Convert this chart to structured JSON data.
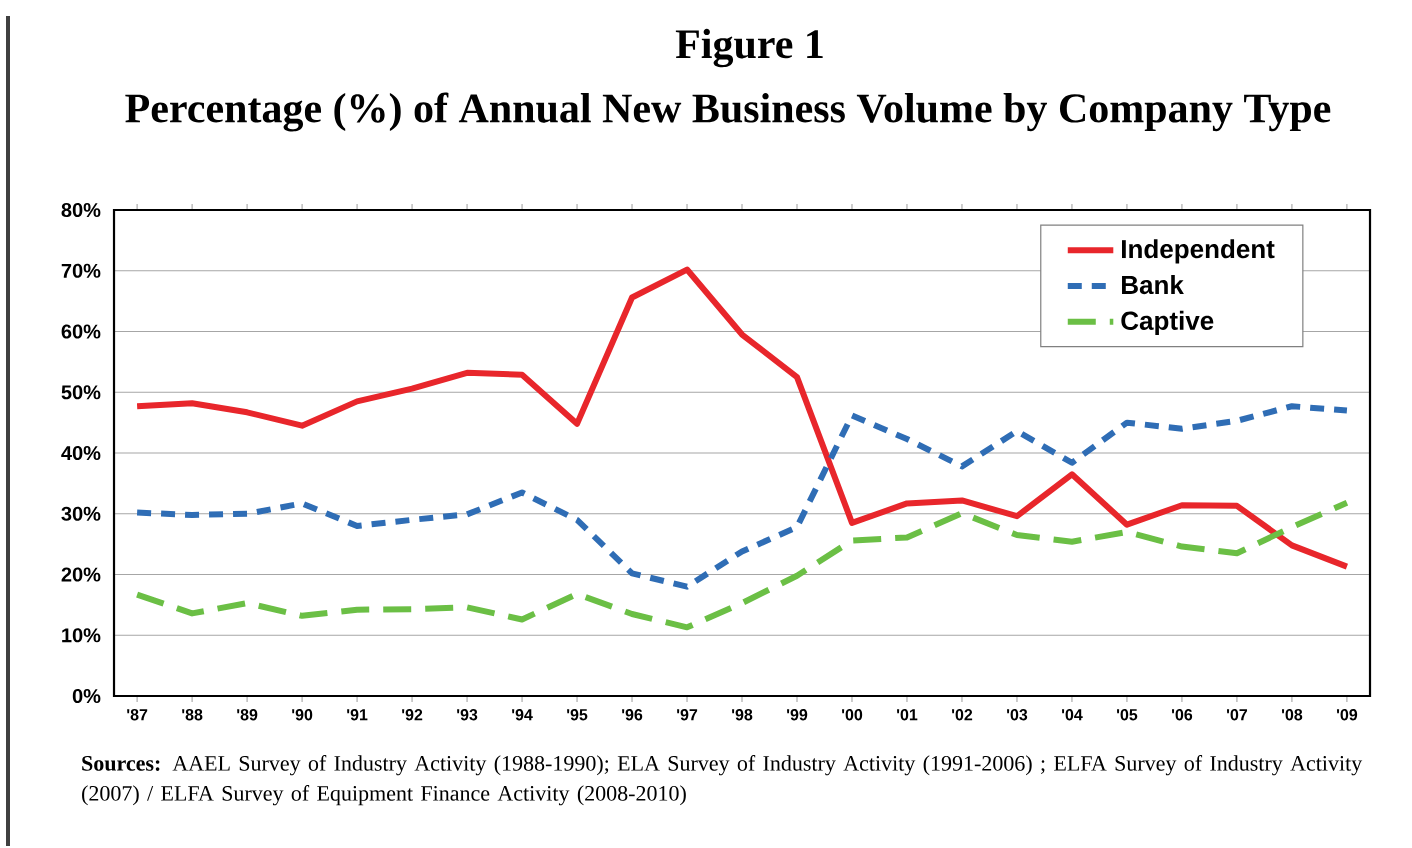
{
  "chart_data": {
    "type": "line",
    "title": "Figure 1",
    "subtitle": "Percentage (%) of Annual New Business Volume by Company Type",
    "categories": [
      "'87",
      "'88",
      "'89",
      "'90",
      "'91",
      "'92",
      "'93",
      "'94",
      "'95",
      "'96",
      "'97",
      "'98",
      "'99",
      "'00",
      "'01",
      "'02",
      "'03",
      "'04",
      "'05",
      "'06",
      "'07",
      "'08",
      "'09"
    ],
    "series": [
      {
        "name": "Independent",
        "color": "#e8262b",
        "line_style": "solid",
        "values": [
          47.7,
          48.2,
          46.7,
          44.5,
          48.5,
          50.6,
          53.2,
          52.9,
          44.8,
          65.6,
          70.2,
          59.5,
          52.5,
          28.5,
          31.7,
          32.2,
          29.6,
          36.5,
          28.2,
          31.4,
          31.3,
          24.8,
          21.3
        ]
      },
      {
        "name": "Bank",
        "color": "#2f6db5",
        "line_style": "dashed",
        "values": [
          30.2,
          29.8,
          30.0,
          31.7,
          28.0,
          29.0,
          29.9,
          33.5,
          29.0,
          20.2,
          18.0,
          23.8,
          27.8,
          46.2,
          42.3,
          37.8,
          43.6,
          38.4,
          45.0,
          44.0,
          45.3,
          47.7,
          47.0
        ]
      },
      {
        "name": "Captive",
        "color": "#6bbf45",
        "line_style": "dashed",
        "values": [
          16.7,
          13.6,
          15.3,
          13.2,
          14.2,
          14.3,
          14.6,
          12.6,
          16.8,
          13.5,
          11.3,
          15.3,
          19.8,
          25.6,
          26.1,
          30.1,
          26.5,
          25.4,
          27.0,
          24.6,
          23.5,
          27.8,
          31.8
        ]
      }
    ],
    "ylim": [
      0,
      80
    ],
    "yticks": [
      {
        "value": 0,
        "label": "0%"
      },
      {
        "value": 10,
        "label": "10%"
      },
      {
        "value": 20,
        "label": "20%"
      },
      {
        "value": 30,
        "label": "30%"
      },
      {
        "value": 40,
        "label": "40%"
      },
      {
        "value": 50,
        "label": "50%"
      },
      {
        "value": 60,
        "label": "60%"
      },
      {
        "value": 70,
        "label": "70%"
      },
      {
        "value": 80,
        "label": "80%"
      }
    ],
    "grid": "y",
    "legend": "top right",
    "marker": "none",
    "annotations": [
      "**Sources:**  AAEL Survey of Industry Activity (1988-1990);  ELA Survey of Industry Activity (1991-2006) ; ELFA Survey of Industry Activity (2007) / ELFA Survey of Equipment Finance Activity (2008-2010)"
    ]
  }
}
